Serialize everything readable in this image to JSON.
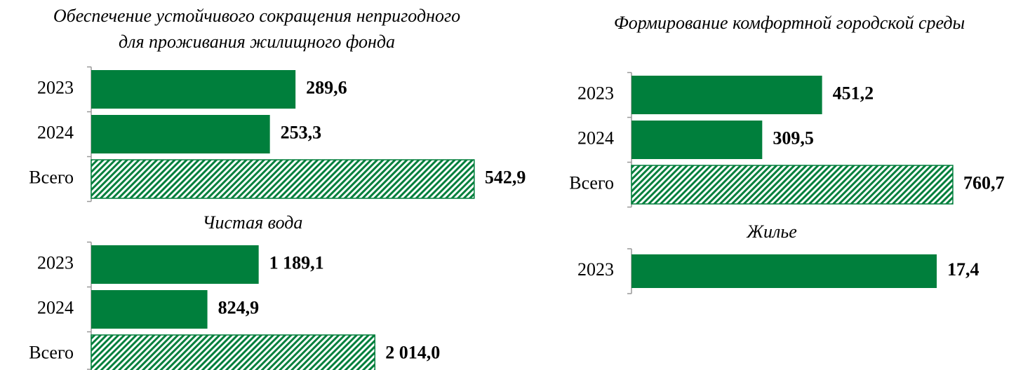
{
  "chart_data": [
    {
      "type": "bar",
      "orientation": "horizontal",
      "title": "Обеспечение устойчивого сокращения непригодного\nдля проживания жилищного фонда",
      "categories": [
        "2023",
        "2024",
        "Всего"
      ],
      "values": [
        289.6,
        253.3,
        542.9
      ],
      "value_labels": [
        "289,6",
        "253,3",
        "542,9"
      ],
      "hatched": [
        false,
        false,
        true
      ],
      "color": "#007f3c",
      "xlim": [
        0,
        557
      ]
    },
    {
      "type": "bar",
      "orientation": "horizontal",
      "title": "Формирование комфортной городской среды",
      "categories": [
        "2023",
        "2024",
        "Всего"
      ],
      "values": [
        451.2,
        309.5,
        760.7
      ],
      "value_labels": [
        "451,2",
        "309,5",
        "760,7"
      ],
      "hatched": [
        false,
        false,
        true
      ],
      "color": "#007f3c",
      "xlim": [
        0,
        897
      ]
    },
    {
      "type": "bar",
      "orientation": "horizontal",
      "title": "Чистая вода",
      "categories": [
        "2023",
        "2024",
        "Всего"
      ],
      "values": [
        1189.1,
        824.9,
        2014.0
      ],
      "value_labels": [
        "1 189,1",
        "824,9",
        "2 014,0"
      ],
      "hatched": [
        false,
        false,
        true
      ],
      "color": "#007f3c",
      "xlim": [
        0,
        2790
      ]
    },
    {
      "type": "bar",
      "orientation": "horizontal",
      "title": "Жилье",
      "categories": [
        "2023"
      ],
      "values": [
        17.4
      ],
      "value_labels": [
        "17,4"
      ],
      "hatched": [
        false
      ],
      "color": "#007f3c",
      "xlim": [
        0,
        21.6
      ]
    }
  ]
}
